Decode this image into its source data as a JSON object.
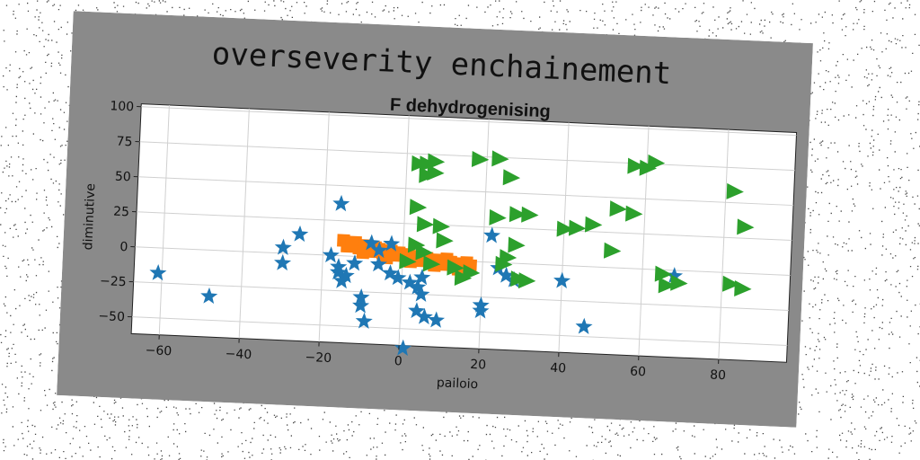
{
  "figure": {
    "suptitle": "overseverity enchainement",
    "background_color": "#8a8a8a",
    "plot_background_color": "#ffffff"
  },
  "chart_data": {
    "type": "scatter",
    "title": "F dehydrogenising",
    "xlabel": "pailoio",
    "ylabel": "diminutive",
    "xlim": [
      -67,
      97
    ],
    "ylim": [
      -62,
      102
    ],
    "xticks": [
      -60,
      -40,
      -20,
      0,
      20,
      40,
      60,
      80
    ],
    "yticks": [
      -50,
      -25,
      0,
      25,
      50,
      75,
      100
    ],
    "grid": true,
    "series": [
      {
        "marker": "star",
        "color": "#1f77b4",
        "points": [
          [
            -61,
            -18
          ],
          [
            -48,
            -33
          ],
          [
            -30,
            4
          ],
          [
            -30,
            -7
          ],
          [
            -26,
            14
          ],
          [
            -16,
            37
          ],
          [
            -18,
            0
          ],
          [
            -16,
            -8
          ],
          [
            -16,
            -12
          ],
          [
            -14,
            -14
          ],
          [
            -15,
            -18
          ],
          [
            -12,
            -5
          ],
          [
            -10,
            -29
          ],
          [
            -10,
            -35
          ],
          [
            -9,
            -46
          ],
          [
            -8,
            10
          ],
          [
            -6,
            5
          ],
          [
            -6,
            -5
          ],
          [
            -3,
            10
          ],
          [
            -3,
            -11
          ],
          [
            -1,
            -14
          ],
          [
            2,
            -17
          ],
          [
            4,
            -20
          ],
          [
            5,
            -13
          ],
          [
            5,
            -25
          ],
          [
            4,
            -37
          ],
          [
            6,
            -41
          ],
          [
            9,
            -43
          ],
          [
            1,
            -64
          ],
          [
            20,
            -31
          ],
          [
            20,
            -35
          ],
          [
            22,
            19
          ],
          [
            24,
            -4
          ],
          [
            26,
            -9
          ],
          [
            28,
            -12
          ],
          [
            40,
            -11
          ],
          [
            46,
            -43
          ],
          [
            68,
            -4
          ]
        ]
      },
      {
        "marker": "triangle-right",
        "color": "#2ca02c",
        "points": [
          [
            3,
            68
          ],
          [
            5,
            68
          ],
          [
            7,
            70
          ],
          [
            5,
            60
          ],
          [
            7,
            62
          ],
          [
            3,
            37
          ],
          [
            5,
            25
          ],
          [
            9,
            24
          ],
          [
            10,
            14
          ],
          [
            3,
            10
          ],
          [
            5,
            5
          ],
          [
            1,
            -2
          ],
          [
            7,
            -3
          ],
          [
            13,
            -5
          ],
          [
            15,
            -12
          ],
          [
            17,
            -8
          ],
          [
            18,
            73
          ],
          [
            23,
            74
          ],
          [
            26,
            61
          ],
          [
            23,
            32
          ],
          [
            28,
            35
          ],
          [
            31,
            35
          ],
          [
            40,
            26
          ],
          [
            43,
            27
          ],
          [
            47,
            30
          ],
          [
            53,
            42
          ],
          [
            57,
            39
          ],
          [
            52,
            12
          ],
          [
            57,
            73
          ],
          [
            60,
            72
          ],
          [
            62,
            76
          ],
          [
            28,
            13
          ],
          [
            26,
            4
          ],
          [
            25,
            -1
          ],
          [
            29,
            -11
          ],
          [
            31,
            -12
          ],
          [
            66,
            -11
          ],
          [
            69,
            -9
          ],
          [
            65,
            -3
          ],
          [
            82,
            58
          ],
          [
            85,
            33
          ],
          [
            82,
            -8
          ],
          [
            85,
            -11
          ]
        ]
      },
      {
        "marker": "square",
        "color": "#ff7f0e",
        "points": [
          [
            -15,
            11
          ],
          [
            -12,
            10
          ],
          [
            -9,
            8
          ],
          [
            -6,
            6
          ],
          [
            -3,
            5
          ],
          [
            0,
            3
          ],
          [
            3,
            2
          ],
          [
            6,
            1
          ],
          [
            9,
            0
          ],
          [
            12,
            -1
          ],
          [
            15,
            -2
          ],
          [
            17,
            -3
          ],
          [
            -14,
            7
          ],
          [
            -11,
            6
          ],
          [
            -8,
            4
          ],
          [
            -5,
            3
          ],
          [
            -2,
            2
          ],
          [
            1,
            0
          ],
          [
            4,
            -1
          ],
          [
            7,
            -2
          ],
          [
            10,
            -3
          ],
          [
            13,
            -4
          ],
          [
            16,
            -5
          ],
          [
            -13,
            9
          ],
          [
            -7,
            7
          ],
          [
            -1,
            4
          ],
          [
            5,
            2
          ],
          [
            11,
            1
          ],
          [
            16,
            -1
          ],
          [
            -10,
            3
          ],
          [
            -4,
            0
          ],
          [
            2,
            -2
          ],
          [
            8,
            -4
          ],
          [
            14,
            -6
          ]
        ]
      }
    ]
  }
}
